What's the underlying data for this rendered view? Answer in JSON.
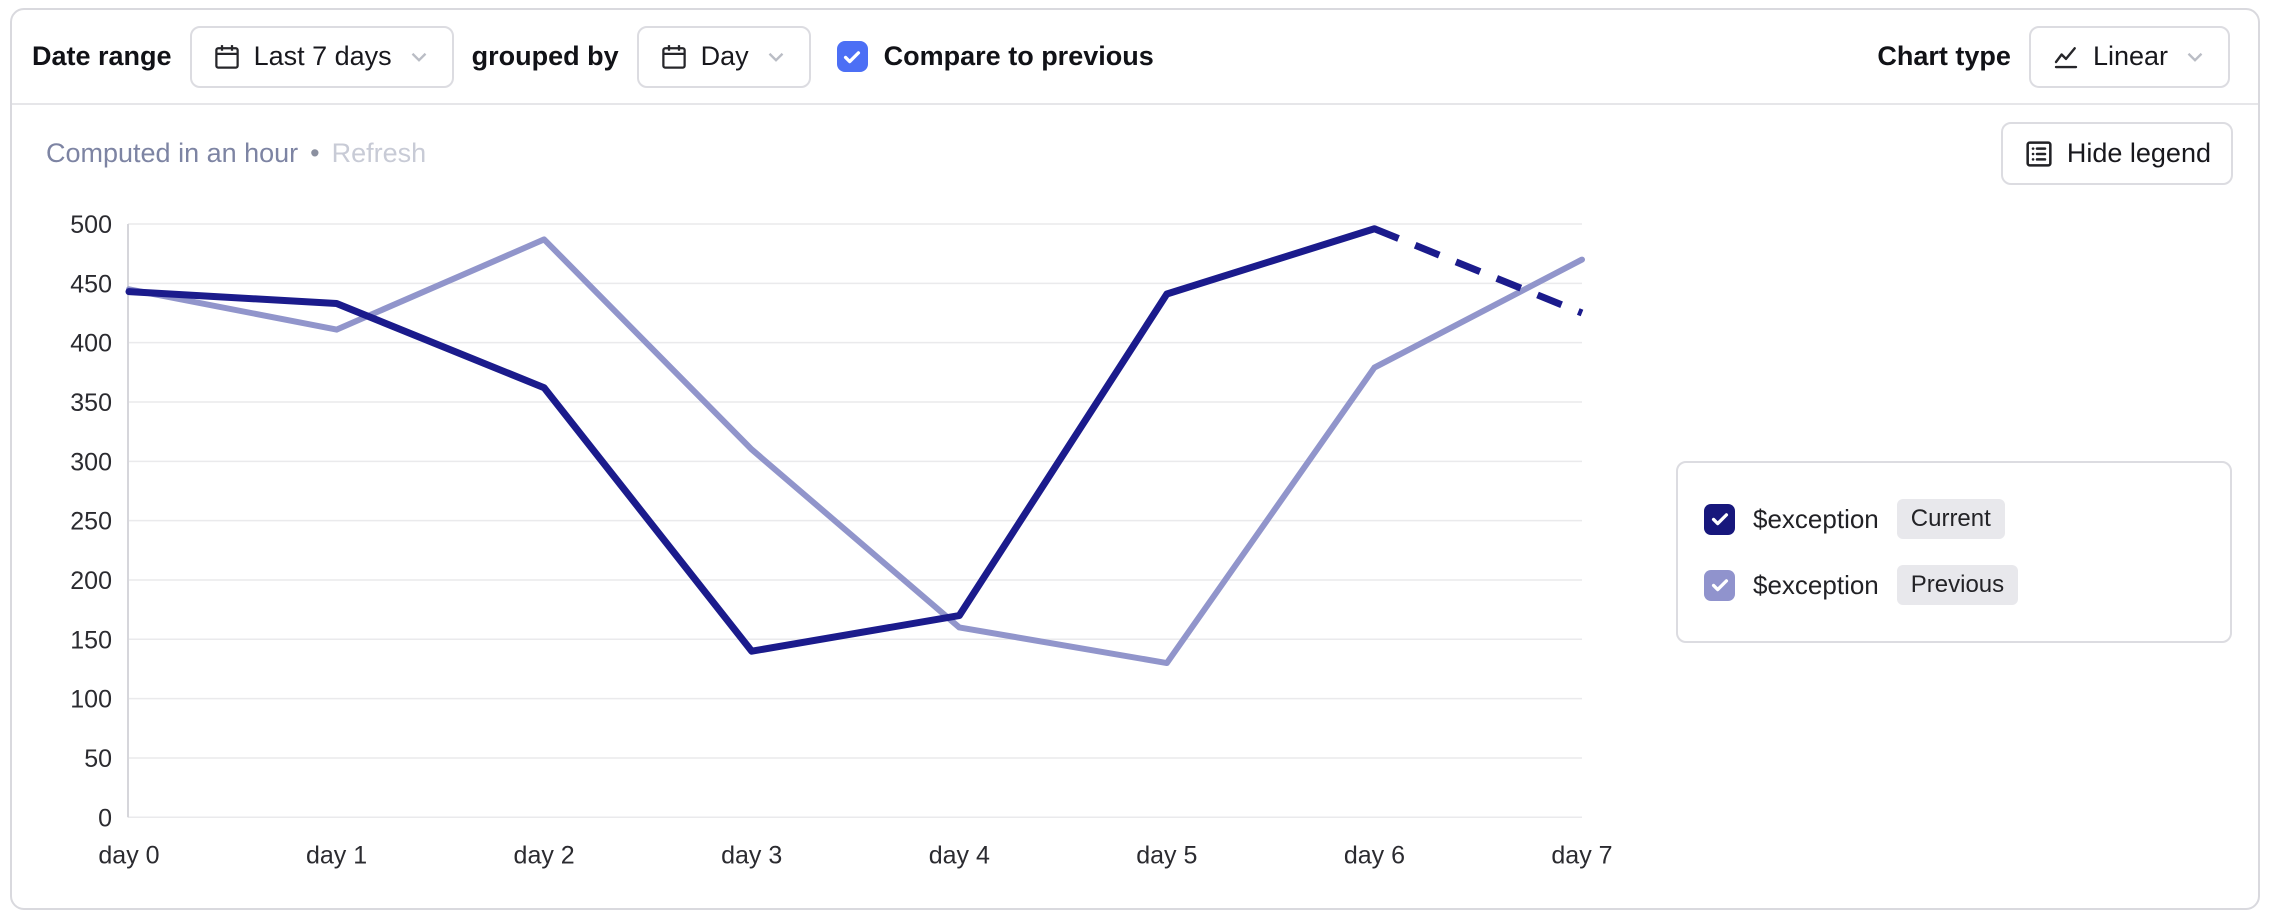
{
  "toolbar": {
    "date_range_label": "Date range",
    "date_range_value": "Last 7 days",
    "grouped_by_label": "grouped by",
    "grouped_by_value": "Day",
    "compare_label": "Compare to previous",
    "compare_checked": true,
    "chart_type_label": "Chart type",
    "chart_type_value": "Linear"
  },
  "status": {
    "computed_text": "Computed in an hour",
    "separator": "•",
    "refresh_label": "Refresh"
  },
  "legend_toggle": {
    "label": "Hide legend"
  },
  "legend": {
    "items": [
      {
        "name": "$exception",
        "badge": "Current",
        "color": "#17177c",
        "checked": true
      },
      {
        "name": "$exception",
        "badge": "Previous",
        "color": "#9093cd",
        "checked": true
      }
    ]
  },
  "colors": {
    "compare_checkbox": "#4c6ff5",
    "current_line": "#1b1b8c",
    "previous_line": "#9195cb",
    "grid": "#eaeaec",
    "axis": "#d6d6db"
  },
  "chart_data": {
    "type": "line",
    "x": [
      "day 0",
      "day 1",
      "day 2",
      "day 3",
      "day 4",
      "day 5",
      "day 6",
      "day 7"
    ],
    "series": [
      {
        "name": "$exception Current",
        "color": "#1b1b8c",
        "stroke_width": 7,
        "values": [
          443,
          433,
          362,
          140,
          170,
          441,
          496,
          425
        ],
        "last_segment_dashed": true
      },
      {
        "name": "$exception Previous",
        "color": "#9195cb",
        "stroke_width": 6,
        "values": [
          445,
          411,
          487,
          310,
          160,
          130,
          379,
          470
        ],
        "last_segment_dashed": false
      }
    ],
    "title": "",
    "xlabel": "",
    "ylabel": "",
    "ylim": [
      0,
      500
    ],
    "ytick_step": 50,
    "grid": true,
    "legend_position": "right"
  }
}
